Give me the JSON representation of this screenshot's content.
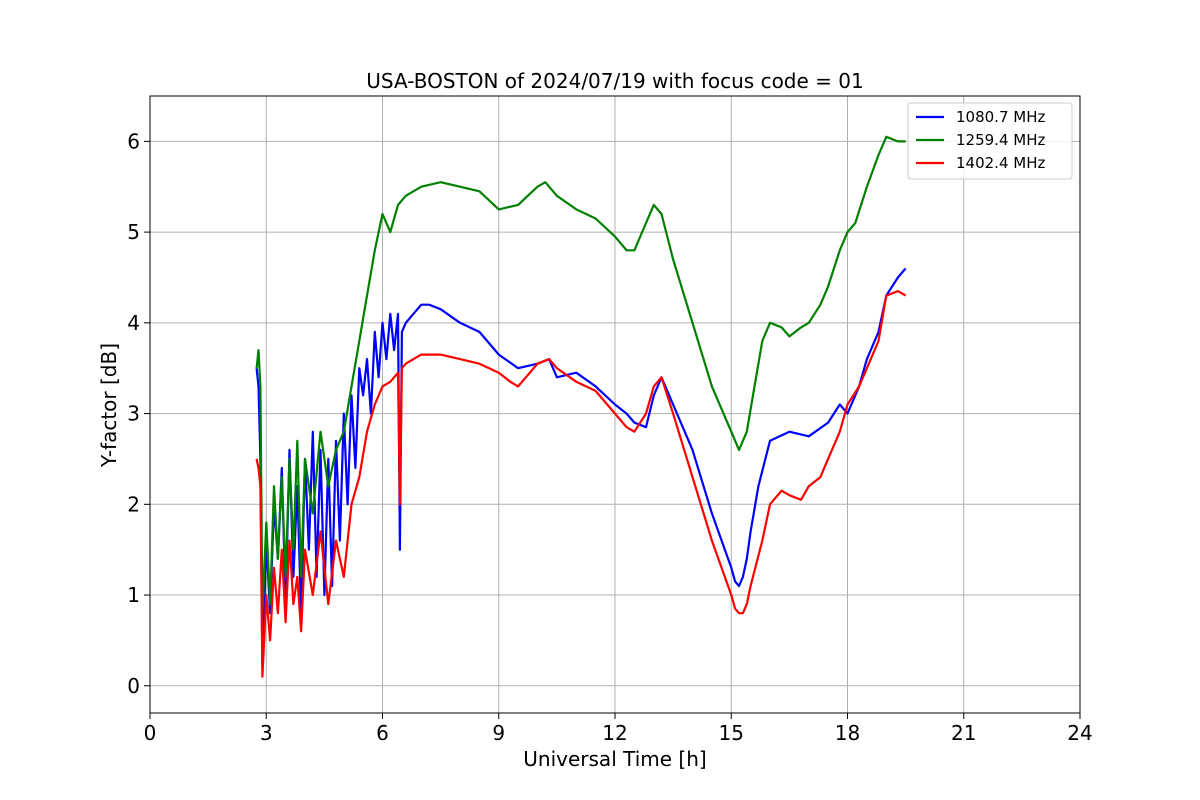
{
  "chart_data": {
    "type": "line",
    "title": "USA-BOSTON of 2024/07/19 with focus code = 01",
    "xlabel": "Universal Time [h]",
    "ylabel": "Y-factor [dB]",
    "xlim": [
      0,
      24
    ],
    "ylim": [
      -0.3,
      6.5
    ],
    "xticks": [
      0,
      3,
      6,
      9,
      12,
      15,
      18,
      21,
      24
    ],
    "yticks": [
      0,
      1,
      2,
      3,
      4,
      5,
      6
    ],
    "grid": true,
    "legend_position": "top-right",
    "series": [
      {
        "name": "1080.7 MHz",
        "color": "#0000ff",
        "x": [
          2.75,
          2.8,
          2.85,
          2.9,
          3.0,
          3.1,
          3.2,
          3.3,
          3.4,
          3.5,
          3.6,
          3.7,
          3.8,
          3.9,
          4.0,
          4.1,
          4.2,
          4.3,
          4.4,
          4.5,
          4.6,
          4.7,
          4.8,
          4.9,
          5.0,
          5.1,
          5.2,
          5.3,
          5.4,
          5.5,
          5.6,
          5.7,
          5.8,
          5.9,
          6.0,
          6.1,
          6.2,
          6.3,
          6.4,
          6.45,
          6.5,
          6.6,
          6.8,
          7.0,
          7.2,
          7.5,
          8.0,
          8.5,
          9.0,
          9.5,
          10.0,
          10.3,
          10.5,
          11.0,
          11.5,
          12.0,
          12.3,
          12.5,
          12.8,
          13.0,
          13.2,
          13.5,
          14.0,
          14.5,
          15.0,
          15.1,
          15.2,
          15.3,
          15.4,
          15.5,
          15.7,
          16.0,
          16.5,
          17.0,
          17.5,
          17.8,
          18.0,
          18.3,
          18.5,
          18.8,
          19.0,
          19.3,
          19.5
        ],
        "y": [
          3.5,
          3.3,
          2.5,
          0.2,
          1.6,
          0.8,
          2.0,
          1.4,
          2.4,
          0.9,
          2.6,
          1.2,
          2.2,
          0.8,
          2.5,
          1.5,
          2.8,
          1.2,
          2.6,
          1.0,
          2.5,
          1.1,
          2.7,
          1.6,
          3.0,
          2.0,
          3.2,
          2.4,
          3.5,
          3.2,
          3.6,
          3.0,
          3.9,
          3.4,
          4.0,
          3.6,
          4.1,
          3.7,
          4.1,
          1.5,
          3.9,
          4.0,
          4.1,
          4.2,
          4.2,
          4.15,
          4.0,
          3.9,
          3.65,
          3.5,
          3.55,
          3.6,
          3.4,
          3.45,
          3.3,
          3.1,
          3.0,
          2.9,
          2.85,
          3.2,
          3.4,
          3.1,
          2.6,
          1.9,
          1.3,
          1.15,
          1.1,
          1.2,
          1.4,
          1.7,
          2.2,
          2.7,
          2.8,
          2.75,
          2.9,
          3.1,
          3.0,
          3.3,
          3.6,
          3.9,
          4.3,
          4.5,
          4.6
        ]
      },
      {
        "name": "1259.4 MHz",
        "color": "#008000",
        "x": [
          2.75,
          2.8,
          2.85,
          2.9,
          3.0,
          3.1,
          3.2,
          3.3,
          3.4,
          3.5,
          3.6,
          3.7,
          3.8,
          3.9,
          4.0,
          4.2,
          4.4,
          4.6,
          4.8,
          5.0,
          5.2,
          5.4,
          5.6,
          5.8,
          6.0,
          6.2,
          6.4,
          6.6,
          7.0,
          7.5,
          8.0,
          8.5,
          9.0,
          9.5,
          10.0,
          10.2,
          10.5,
          11.0,
          11.5,
          12.0,
          12.3,
          12.5,
          12.8,
          13.0,
          13.2,
          13.5,
          14.0,
          14.5,
          14.8,
          15.0,
          15.2,
          15.4,
          15.6,
          15.8,
          16.0,
          16.3,
          16.5,
          16.8,
          17.0,
          17.3,
          17.5,
          17.8,
          18.0,
          18.2,
          18.5,
          18.8,
          19.0,
          19.3,
          19.5
        ],
        "y": [
          3.5,
          3.7,
          3.3,
          0.8,
          1.8,
          0.9,
          2.2,
          1.4,
          2.3,
          1.2,
          2.5,
          1.5,
          2.7,
          1.2,
          2.5,
          1.9,
          2.8,
          2.2,
          2.6,
          2.8,
          3.3,
          3.8,
          4.3,
          4.8,
          5.2,
          5.0,
          5.3,
          5.4,
          5.5,
          5.55,
          5.5,
          5.45,
          5.25,
          5.3,
          5.5,
          5.55,
          5.4,
          5.25,
          5.15,
          4.95,
          4.8,
          4.8,
          5.1,
          5.3,
          5.2,
          4.7,
          4.0,
          3.3,
          3.0,
          2.8,
          2.6,
          2.8,
          3.3,
          3.8,
          4.0,
          3.95,
          3.85,
          3.95,
          4.0,
          4.2,
          4.4,
          4.8,
          5.0,
          5.1,
          5.5,
          5.85,
          6.05,
          6.0,
          6.0
        ]
      },
      {
        "name": "1402.4 MHz",
        "color": "#ff0000",
        "x": [
          2.75,
          2.8,
          2.85,
          2.9,
          3.0,
          3.1,
          3.2,
          3.3,
          3.4,
          3.5,
          3.6,
          3.7,
          3.8,
          3.9,
          4.0,
          4.2,
          4.4,
          4.6,
          4.8,
          5.0,
          5.2,
          5.4,
          5.6,
          5.8,
          6.0,
          6.2,
          6.4,
          6.45,
          6.5,
          6.6,
          6.8,
          7.0,
          7.5,
          8.0,
          8.5,
          9.0,
          9.3,
          9.5,
          10.0,
          10.3,
          10.5,
          11.0,
          11.5,
          12.0,
          12.3,
          12.5,
          12.8,
          13.0,
          13.2,
          13.5,
          14.0,
          14.5,
          15.0,
          15.1,
          15.2,
          15.3,
          15.4,
          15.5,
          15.8,
          16.0,
          16.3,
          16.5,
          16.8,
          17.0,
          17.3,
          17.5,
          17.8,
          18.0,
          18.3,
          18.5,
          18.8,
          19.0,
          19.3,
          19.5
        ],
        "y": [
          2.5,
          2.4,
          2.2,
          0.1,
          1.0,
          0.5,
          1.3,
          0.8,
          1.5,
          0.7,
          1.6,
          0.9,
          1.2,
          0.6,
          1.5,
          1.0,
          1.7,
          0.9,
          1.6,
          1.2,
          2.0,
          2.3,
          2.8,
          3.1,
          3.3,
          3.35,
          3.45,
          2.0,
          3.5,
          3.55,
          3.6,
          3.65,
          3.65,
          3.6,
          3.55,
          3.45,
          3.35,
          3.3,
          3.55,
          3.6,
          3.5,
          3.35,
          3.25,
          3.0,
          2.85,
          2.8,
          3.0,
          3.3,
          3.4,
          3.0,
          2.3,
          1.6,
          1.0,
          0.85,
          0.8,
          0.8,
          0.9,
          1.1,
          1.6,
          2.0,
          2.15,
          2.1,
          2.05,
          2.2,
          2.3,
          2.5,
          2.8,
          3.1,
          3.3,
          3.5,
          3.8,
          4.3,
          4.35,
          4.3
        ]
      }
    ]
  }
}
